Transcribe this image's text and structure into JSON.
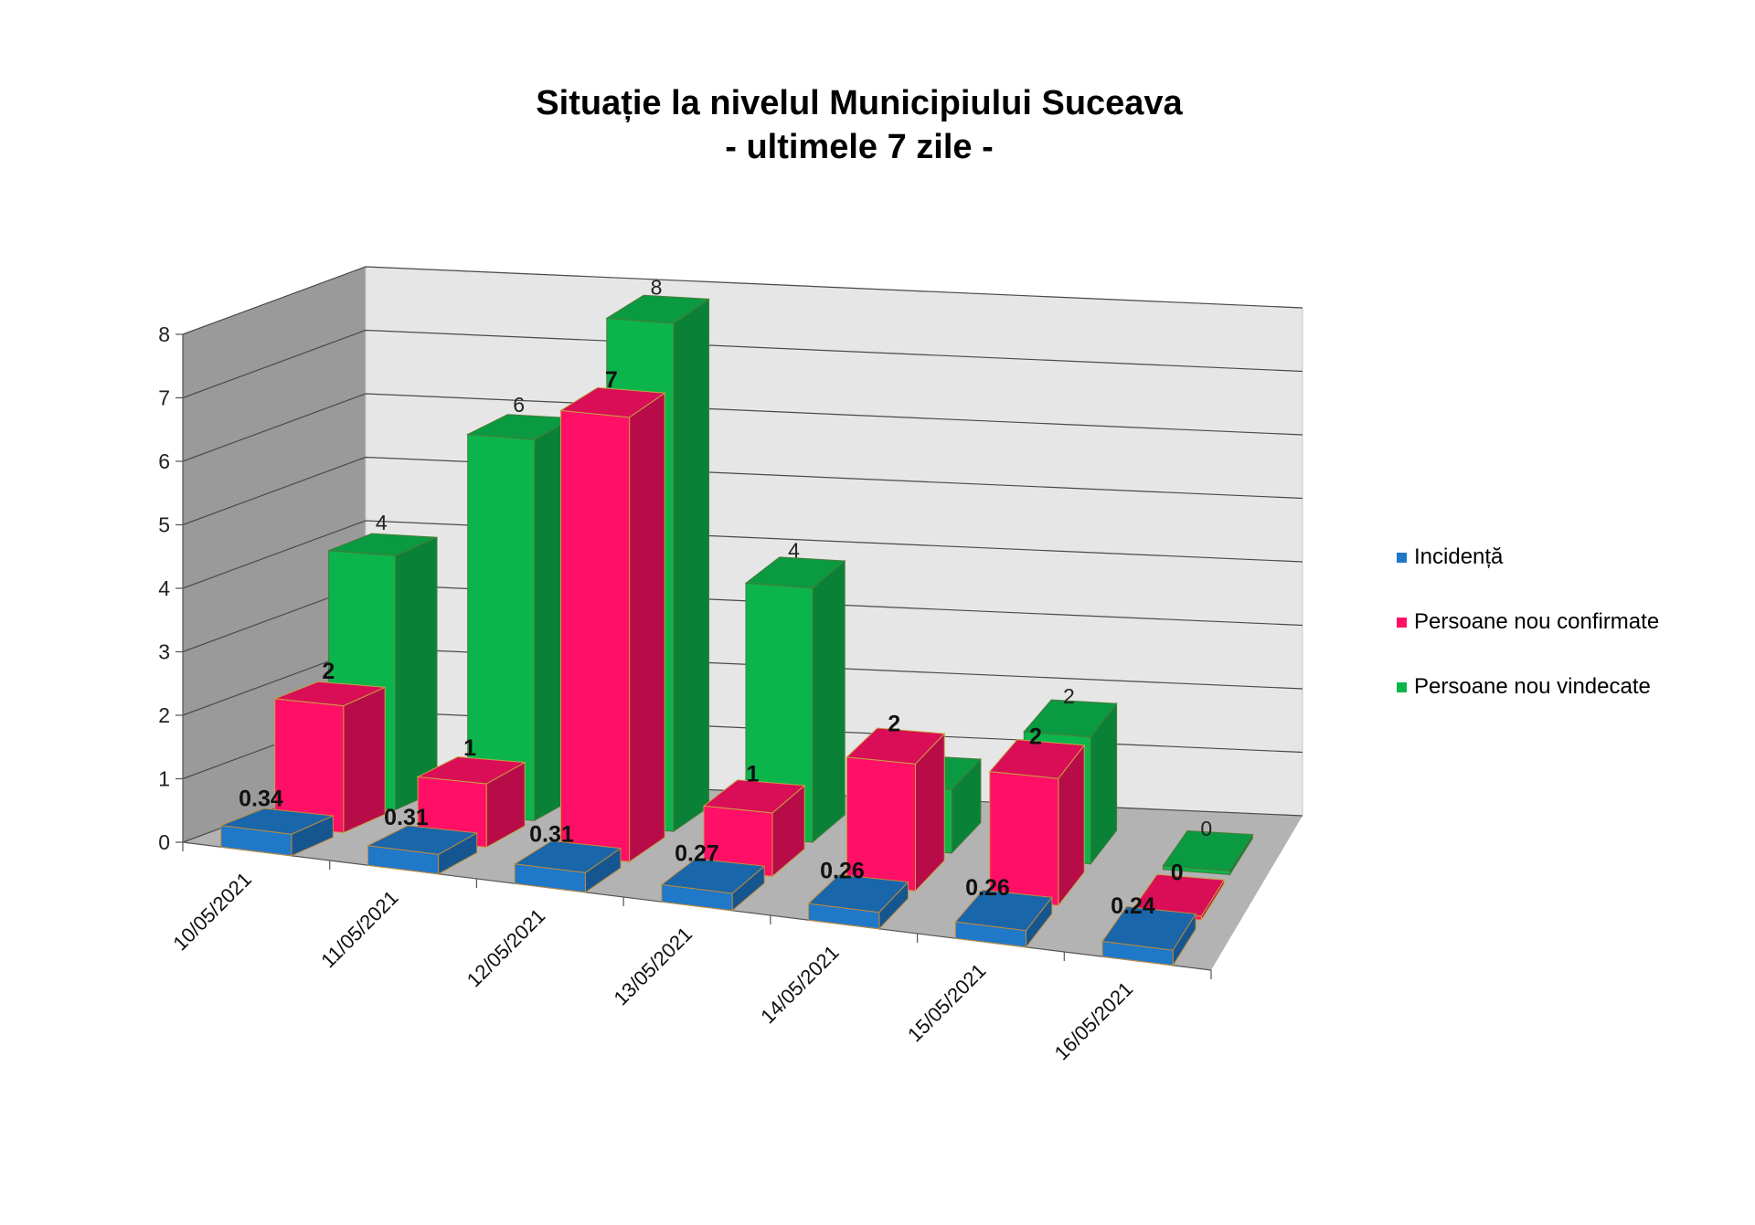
{
  "chart_data": {
    "type": "bar",
    "title": "Situație la nivelul Municipiului Suceava",
    "subtitle": "- ultimele 7 zile -",
    "categories": [
      "10/05/2021",
      "11/05/2021",
      "12/05/2021",
      "13/05/2021",
      "14/05/2021",
      "15/05/2021",
      "16/05/2021"
    ],
    "series": [
      {
        "name": "Incidență",
        "values": [
          0.34,
          0.31,
          0.31,
          0.27,
          0.26,
          0.26,
          0.24
        ],
        "labels": [
          "0.34",
          "0.31",
          "0.31",
          "0.27",
          "0.26",
          "0.26",
          "0.24"
        ],
        "color": "#1f78c8"
      },
      {
        "name": "Persoane nou confirmate",
        "values": [
          2,
          1,
          7,
          1,
          2,
          2,
          0
        ],
        "labels": [
          "2",
          "1",
          "7",
          "1",
          "2",
          "2",
          "0"
        ],
        "color": "#ff1066"
      },
      {
        "name": "Persoane nou vindecate",
        "values": [
          4,
          6,
          8,
          4,
          1,
          2,
          0
        ],
        "labels": [
          "4",
          "6",
          "8",
          "4",
          "",
          "2",
          "0"
        ],
        "color": "#0cb54c"
      }
    ],
    "ylim": [
      0,
      8
    ],
    "yticks": [
      "0",
      "1",
      "2",
      "3",
      "4",
      "5",
      "6",
      "7",
      "8"
    ],
    "grid": true,
    "legend": "right",
    "style": "3d-clustered-column"
  }
}
